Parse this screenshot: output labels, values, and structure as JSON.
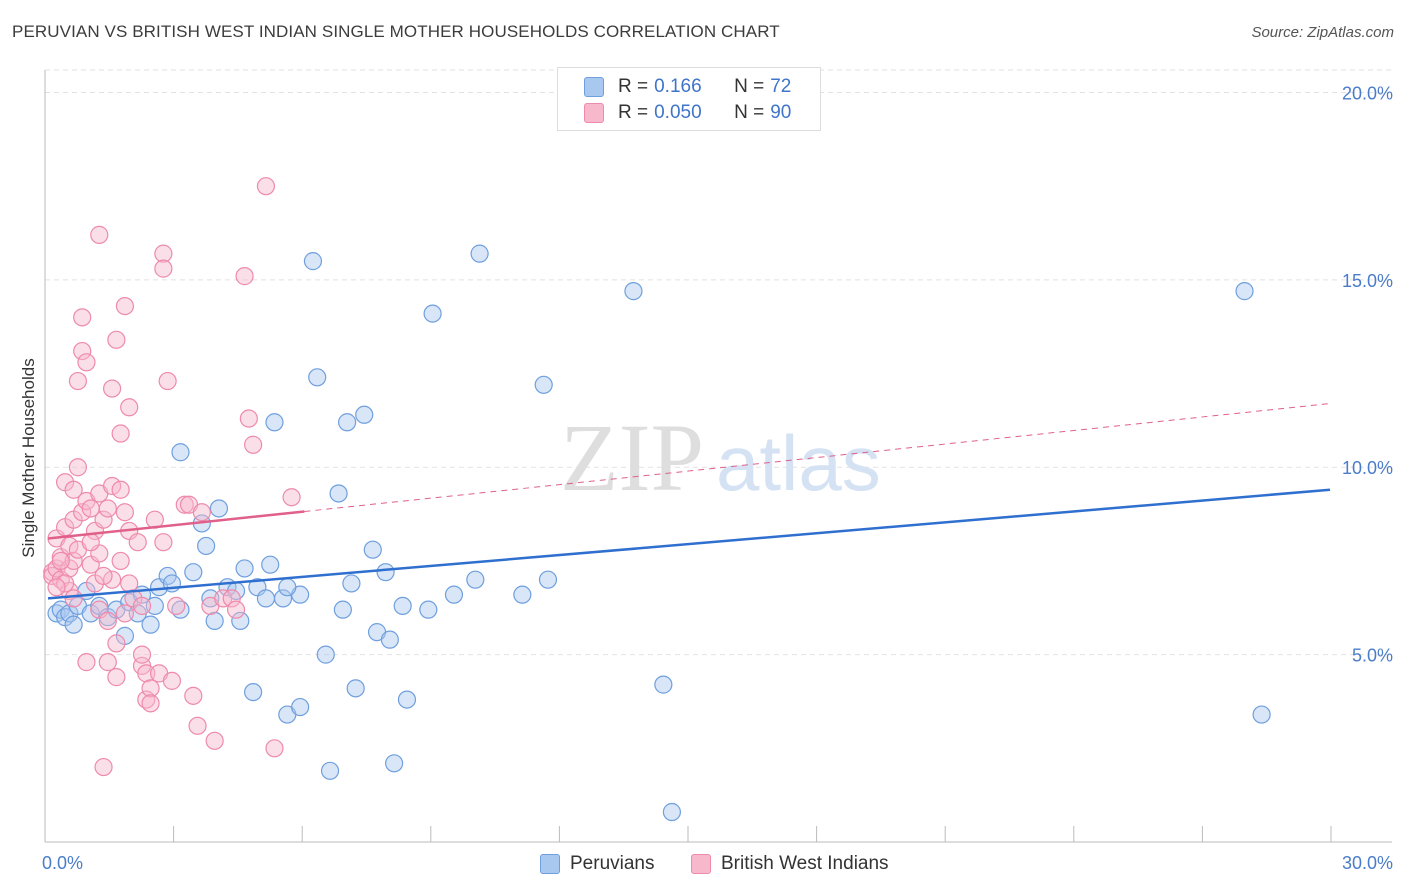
{
  "title": "PERUVIAN VS BRITISH WEST INDIAN SINGLE MOTHER HOUSEHOLDS CORRELATION CHART",
  "source": "Source: ZipAtlas.com",
  "watermark": {
    "zip": "ZIP",
    "atlas": "atlas"
  },
  "legend": {
    "rows": [
      {
        "r_label": "R =",
        "r_value": "0.166",
        "n_label": "N =",
        "n_value": "72",
        "color": "#a8c8f0",
        "border": "#6f9fde"
      },
      {
        "r_label": "R =",
        "r_value": "0.050",
        "n_label": "N =",
        "n_value": "90",
        "color": "#f7b8cc",
        "border": "#ee8aab"
      }
    ]
  },
  "bottom_legend": [
    {
      "label": "Peruvians",
      "color": "#a8c8f0",
      "border": "#6f9fde"
    },
    {
      "label": "British West Indians",
      "color": "#f7b8cc",
      "border": "#ee8aab"
    }
  ],
  "chart_data": {
    "type": "scatter",
    "title": "PERUVIAN VS BRITISH WEST INDIAN SINGLE MOTHER HOUSEHOLDS CORRELATION CHART",
    "xlabel": "",
    "ylabel": "Single Mother Households",
    "xlim": [
      0,
      30
    ],
    "ylim": [
      0,
      20.6
    ],
    "x_tick_labels": [
      "0.0%",
      "30.0%"
    ],
    "y_ticks": [
      5,
      10,
      15,
      20
    ],
    "y_tick_labels": [
      "5.0%",
      "10.0%",
      "15.0%",
      "20.0%"
    ],
    "grid": true,
    "series": [
      {
        "name": "Peruvians",
        "color": "#a8c8f0",
        "edge": "#6f9fde",
        "line_color": "#2f6fcf",
        "trend": {
          "x": [
            0,
            30
          ],
          "y": [
            6.5,
            9.4
          ],
          "dashed_from": null
        },
        "points": [
          [
            0.2,
            6.1
          ],
          [
            0.3,
            6.2
          ],
          [
            0.4,
            6.0
          ],
          [
            0.5,
            6.1
          ],
          [
            0.6,
            5.8
          ],
          [
            0.7,
            6.3
          ],
          [
            0.9,
            6.7
          ],
          [
            1.0,
            6.1
          ],
          [
            1.2,
            6.3
          ],
          [
            1.4,
            6.0
          ],
          [
            1.6,
            6.2
          ],
          [
            1.8,
            5.5
          ],
          [
            1.9,
            6.4
          ],
          [
            2.1,
            6.1
          ],
          [
            2.2,
            6.6
          ],
          [
            2.4,
            5.8
          ],
          [
            2.5,
            6.3
          ],
          [
            2.6,
            6.8
          ],
          [
            2.8,
            7.1
          ],
          [
            2.9,
            6.9
          ],
          [
            3.1,
            6.2
          ],
          [
            3.1,
            10.4
          ],
          [
            3.4,
            7.2
          ],
          [
            3.6,
            8.5
          ],
          [
            3.7,
            7.9
          ],
          [
            3.8,
            6.5
          ],
          [
            3.9,
            5.9
          ],
          [
            4.0,
            8.9
          ],
          [
            4.2,
            6.8
          ],
          [
            4.4,
            6.7
          ],
          [
            4.5,
            5.9
          ],
          [
            4.6,
            7.3
          ],
          [
            4.8,
            4.0
          ],
          [
            4.9,
            6.8
          ],
          [
            5.1,
            6.5
          ],
          [
            5.2,
            7.4
          ],
          [
            5.3,
            11.2
          ],
          [
            5.5,
            6.5
          ],
          [
            5.6,
            3.4
          ],
          [
            5.9,
            3.6
          ],
          [
            5.9,
            6.6
          ],
          [
            6.2,
            15.5
          ],
          [
            6.3,
            12.4
          ],
          [
            6.5,
            5.0
          ],
          [
            6.6,
            1.9
          ],
          [
            6.8,
            9.3
          ],
          [
            6.9,
            6.2
          ],
          [
            7.0,
            11.2
          ],
          [
            7.1,
            6.9
          ],
          [
            7.2,
            4.1
          ],
          [
            7.4,
            11.4
          ],
          [
            7.6,
            7.8
          ],
          [
            7.7,
            5.6
          ],
          [
            7.9,
            7.2
          ],
          [
            8.0,
            5.4
          ],
          [
            8.1,
            2.1
          ],
          [
            8.3,
            6.3
          ],
          [
            8.4,
            3.8
          ],
          [
            8.9,
            6.2
          ],
          [
            9.0,
            14.1
          ],
          [
            9.5,
            6.6
          ],
          [
            10.0,
            7.0
          ],
          [
            10.1,
            15.7
          ],
          [
            11.1,
            6.6
          ],
          [
            11.6,
            12.2
          ],
          [
            11.7,
            7.0
          ],
          [
            13.7,
            14.7
          ],
          [
            14.4,
            4.2
          ],
          [
            14.6,
            0.8
          ],
          [
            28.0,
            14.7
          ],
          [
            28.4,
            3.4
          ],
          [
            5.6,
            6.8
          ]
        ]
      },
      {
        "name": "British West Indians",
        "color": "#f7b8cc",
        "edge": "#ee8aab",
        "line_color": "#e0608a",
        "trend": {
          "x": [
            0,
            30
          ],
          "y": [
            8.1,
            11.7
          ],
          "solid_until": 6.0
        },
        "points": [
          [
            0.1,
            7.2
          ],
          [
            0.1,
            7.1
          ],
          [
            0.2,
            7.3
          ],
          [
            0.2,
            8.1
          ],
          [
            0.3,
            7.0
          ],
          [
            0.3,
            7.6
          ],
          [
            0.4,
            8.4
          ],
          [
            0.4,
            9.6
          ],
          [
            0.5,
            7.9
          ],
          [
            0.5,
            6.7
          ],
          [
            0.6,
            9.4
          ],
          [
            0.6,
            8.6
          ],
          [
            0.6,
            6.5
          ],
          [
            0.7,
            12.3
          ],
          [
            0.7,
            10.0
          ],
          [
            0.8,
            8.8
          ],
          [
            0.8,
            14.0
          ],
          [
            0.8,
            13.1
          ],
          [
            0.9,
            12.8
          ],
          [
            0.9,
            9.1
          ],
          [
            0.9,
            4.8
          ],
          [
            1.0,
            8.9
          ],
          [
            1.0,
            7.4
          ],
          [
            1.1,
            8.3
          ],
          [
            1.1,
            6.9
          ],
          [
            1.2,
            9.3
          ],
          [
            1.2,
            7.7
          ],
          [
            1.2,
            6.2
          ],
          [
            1.2,
            16.2
          ],
          [
            1.3,
            2.0
          ],
          [
            1.3,
            8.6
          ],
          [
            1.4,
            8.9
          ],
          [
            1.4,
            5.9
          ],
          [
            1.4,
            4.8
          ],
          [
            1.5,
            12.1
          ],
          [
            1.5,
            9.5
          ],
          [
            1.5,
            7.0
          ],
          [
            1.6,
            13.4
          ],
          [
            1.6,
            5.3
          ],
          [
            1.6,
            4.4
          ],
          [
            1.7,
            10.9
          ],
          [
            1.7,
            9.4
          ],
          [
            1.7,
            7.5
          ],
          [
            1.8,
            14.3
          ],
          [
            1.8,
            8.8
          ],
          [
            1.8,
            6.1
          ],
          [
            1.9,
            11.6
          ],
          [
            1.9,
            8.3
          ],
          [
            1.9,
            6.9
          ],
          [
            2.0,
            6.5
          ],
          [
            2.1,
            8.0
          ],
          [
            2.2,
            6.3
          ],
          [
            2.2,
            4.7
          ],
          [
            2.2,
            5.0
          ],
          [
            2.3,
            4.5
          ],
          [
            2.3,
            3.8
          ],
          [
            2.4,
            4.1
          ],
          [
            2.4,
            3.7
          ],
          [
            2.5,
            8.6
          ],
          [
            2.6,
            4.5
          ],
          [
            2.7,
            15.7
          ],
          [
            2.7,
            15.3
          ],
          [
            2.7,
            8.0
          ],
          [
            2.8,
            12.3
          ],
          [
            2.9,
            4.3
          ],
          [
            3.0,
            6.3
          ],
          [
            3.2,
            9.0
          ],
          [
            3.3,
            9.0
          ],
          [
            3.4,
            3.9
          ],
          [
            3.5,
            3.1
          ],
          [
            3.6,
            8.8
          ],
          [
            3.8,
            6.3
          ],
          [
            3.9,
            2.7
          ],
          [
            4.1,
            6.5
          ],
          [
            4.3,
            6.5
          ],
          [
            4.4,
            6.2
          ],
          [
            4.6,
            15.1
          ],
          [
            4.7,
            11.3
          ],
          [
            4.8,
            10.6
          ],
          [
            5.1,
            17.5
          ],
          [
            5.3,
            2.5
          ],
          [
            5.7,
            9.2
          ],
          [
            0.5,
            7.3
          ],
          [
            0.6,
            7.5
          ],
          [
            0.7,
            7.8
          ],
          [
            1.0,
            8.0
          ],
          [
            1.3,
            7.1
          ],
          [
            0.4,
            6.9
          ],
          [
            0.3,
            7.5
          ],
          [
            0.2,
            6.8
          ]
        ]
      }
    ]
  }
}
